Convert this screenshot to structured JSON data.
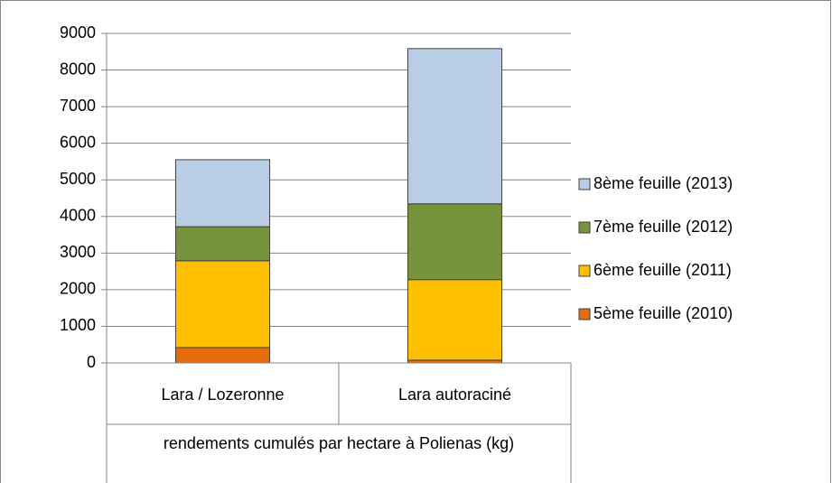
{
  "chart_data": {
    "type": "stacked_bar",
    "categories": [
      "Lara / Lozeronne",
      "Lara autoraciné"
    ],
    "group_label": "rendements cumulés par hectare à Polienas (kg)",
    "series": [
      {
        "name": "5ème feuille (2010)",
        "color": "#e46c0a",
        "values": [
          420,
          75
        ]
      },
      {
        "name": "6ème feuille (2011)",
        "color": "#ffc000",
        "values": [
          2370,
          2200
        ]
      },
      {
        "name": "7ème feuille (2012)",
        "color": "#77933c",
        "values": [
          930,
          2070
        ]
      },
      {
        "name": "8ème feuille (2013)",
        "color": "#b9cde5",
        "values": [
          1830,
          4240
        ]
      }
    ],
    "ylim": [
      0,
      9000
    ],
    "yticks": [
      0,
      1000,
      2000,
      3000,
      4000,
      5000,
      6000,
      7000,
      8000,
      9000
    ],
    "grid": true,
    "legend": "right"
  }
}
